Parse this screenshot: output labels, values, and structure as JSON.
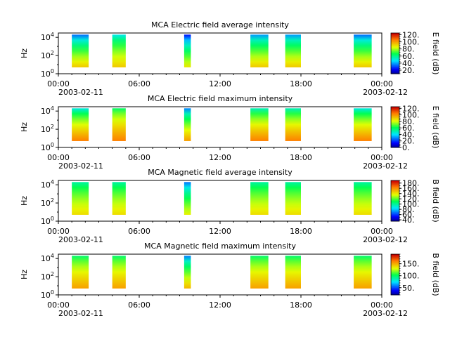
{
  "chart_data": [
    {
      "type": "heatmap",
      "title": "MCA  Electric field average intensity",
      "ylabel": "Hz",
      "ylim": [
        1,
        30000
      ],
      "y_scale": "log",
      "y_ticks": [
        {
          "value": 1,
          "base": "10",
          "exp": "0"
        },
        {
          "value": 100,
          "base": "10",
          "exp": "2"
        },
        {
          "value": 10000,
          "base": "10",
          "exp": "4"
        }
      ],
      "x_ticks": [
        "00:00",
        "06:00",
        "12:00",
        "18:00",
        "00:00"
      ],
      "x_dates": [
        "2003-02-11",
        "2003-02-12"
      ],
      "colorbar": {
        "label": "E field (dB)",
        "range": [
          10,
          125
        ],
        "ticks": [
          "20.",
          "40.",
          "60.",
          "80.",
          "100.",
          "120."
        ],
        "tick_values": [
          20,
          40,
          60,
          80,
          100,
          120
        ]
      },
      "segments": [
        {
          "start": "01:00",
          "end": "02:15",
          "top_value": 35,
          "low_value": 95
        },
        {
          "start": "04:00",
          "end": "05:00",
          "top_value": 50,
          "low_value": 95
        },
        {
          "start": "09:20",
          "end": "09:50",
          "top_value": 25,
          "low_value": 90
        },
        {
          "start": "14:15",
          "end": "15:35",
          "top_value": 40,
          "low_value": 95
        },
        {
          "start": "16:50",
          "end": "18:00",
          "top_value": 40,
          "low_value": 95
        },
        {
          "start": "21:55",
          "end": "23:15",
          "top_value": 35,
          "low_value": 95
        }
      ]
    },
    {
      "type": "heatmap",
      "title": "MCA  Electric field maximum intensity",
      "ylabel": "Hz",
      "ylim": [
        1,
        30000
      ],
      "y_scale": "log",
      "y_ticks": [
        {
          "value": 1,
          "base": "10",
          "exp": "0"
        },
        {
          "value": 100,
          "base": "10",
          "exp": "2"
        },
        {
          "value": 10000,
          "base": "10",
          "exp": "4"
        }
      ],
      "x_ticks": [
        "00:00",
        "06:00",
        "12:00",
        "18:00",
        "00:00"
      ],
      "x_dates": [
        "2003-02-11",
        "2003-02-12"
      ],
      "colorbar": {
        "label": "E field (dB)",
        "range": [
          0,
          125
        ],
        "ticks": [
          "0.",
          "20.",
          "40.",
          "60.",
          "80.",
          "100.",
          "120."
        ],
        "tick_values": [
          0,
          20,
          40,
          60,
          80,
          100,
          120
        ]
      },
      "segments": [
        {
          "start": "01:00",
          "end": "02:15",
          "top_value": 45,
          "low_value": 105
        },
        {
          "start": "04:00",
          "end": "05:00",
          "top_value": 60,
          "low_value": 105
        },
        {
          "start": "09:20",
          "end": "09:50",
          "top_value": 30,
          "low_value": 100
        },
        {
          "start": "14:15",
          "end": "15:35",
          "top_value": 50,
          "low_value": 105
        },
        {
          "start": "16:50",
          "end": "18:00",
          "top_value": 50,
          "low_value": 105
        },
        {
          "start": "21:55",
          "end": "23:15",
          "top_value": 45,
          "low_value": 105
        }
      ]
    },
    {
      "type": "heatmap",
      "title": "MCA  Magnetic field average intensity",
      "ylabel": "Hz",
      "ylim": [
        1,
        30000
      ],
      "y_scale": "log",
      "y_ticks": [
        {
          "value": 1,
          "base": "10",
          "exp": "0"
        },
        {
          "value": 100,
          "base": "10",
          "exp": "2"
        },
        {
          "value": 10000,
          "base": "10",
          "exp": "4"
        }
      ],
      "x_ticks": [
        "00:00",
        "06:00",
        "12:00",
        "18:00",
        "00:00"
      ],
      "x_dates": [
        "2003-02-11",
        "2003-02-12"
      ],
      "colorbar": {
        "label": "B field (dB)",
        "range": [
          35,
          190
        ],
        "ticks": [
          "40.",
          "60.",
          "80.",
          "100.",
          "120.",
          "140.",
          "160.",
          "180."
        ],
        "tick_values": [
          40,
          60,
          80,
          100,
          120,
          140,
          160,
          180
        ]
      },
      "segments": [
        {
          "start": "01:00",
          "end": "02:15",
          "top_value": 100,
          "low_value": 145
        },
        {
          "start": "04:00",
          "end": "05:00",
          "top_value": 100,
          "low_value": 145
        },
        {
          "start": "09:20",
          "end": "09:50",
          "top_value": 70,
          "low_value": 140
        },
        {
          "start": "14:15",
          "end": "15:35",
          "top_value": 100,
          "low_value": 145
        },
        {
          "start": "16:50",
          "end": "18:00",
          "top_value": 100,
          "low_value": 145
        },
        {
          "start": "21:55",
          "end": "23:15",
          "top_value": 100,
          "low_value": 145
        }
      ]
    },
    {
      "type": "heatmap",
      "title": "MCA  Magnetic field maximum intensity",
      "ylabel": "Hz",
      "ylim": [
        1,
        30000
      ],
      "y_scale": "log",
      "y_ticks": [
        {
          "value": 1,
          "base": "10",
          "exp": "0"
        },
        {
          "value": 100,
          "base": "10",
          "exp": "2"
        },
        {
          "value": 10000,
          "base": "10",
          "exp": "4"
        }
      ],
      "x_ticks": [
        "00:00",
        "06:00",
        "12:00",
        "18:00",
        "00:00"
      ],
      "x_dates": [
        "2003-02-11",
        "2003-02-12"
      ],
      "colorbar": {
        "label": "B field (dB)",
        "range": [
          20,
          190
        ],
        "ticks": [
          "50.",
          "100.",
          "150."
        ],
        "tick_values": [
          50,
          100,
          150
        ]
      },
      "segments": [
        {
          "start": "01:00",
          "end": "02:15",
          "top_value": 100,
          "low_value": 155
        },
        {
          "start": "04:00",
          "end": "05:00",
          "top_value": 100,
          "low_value": 155
        },
        {
          "start": "09:20",
          "end": "09:50",
          "top_value": 60,
          "low_value": 150
        },
        {
          "start": "14:15",
          "end": "15:35",
          "top_value": 100,
          "low_value": 155
        },
        {
          "start": "16:50",
          "end": "18:00",
          "top_value": 100,
          "low_value": 155
        },
        {
          "start": "21:55",
          "end": "23:15",
          "top_value": 100,
          "low_value": 155
        }
      ]
    }
  ]
}
